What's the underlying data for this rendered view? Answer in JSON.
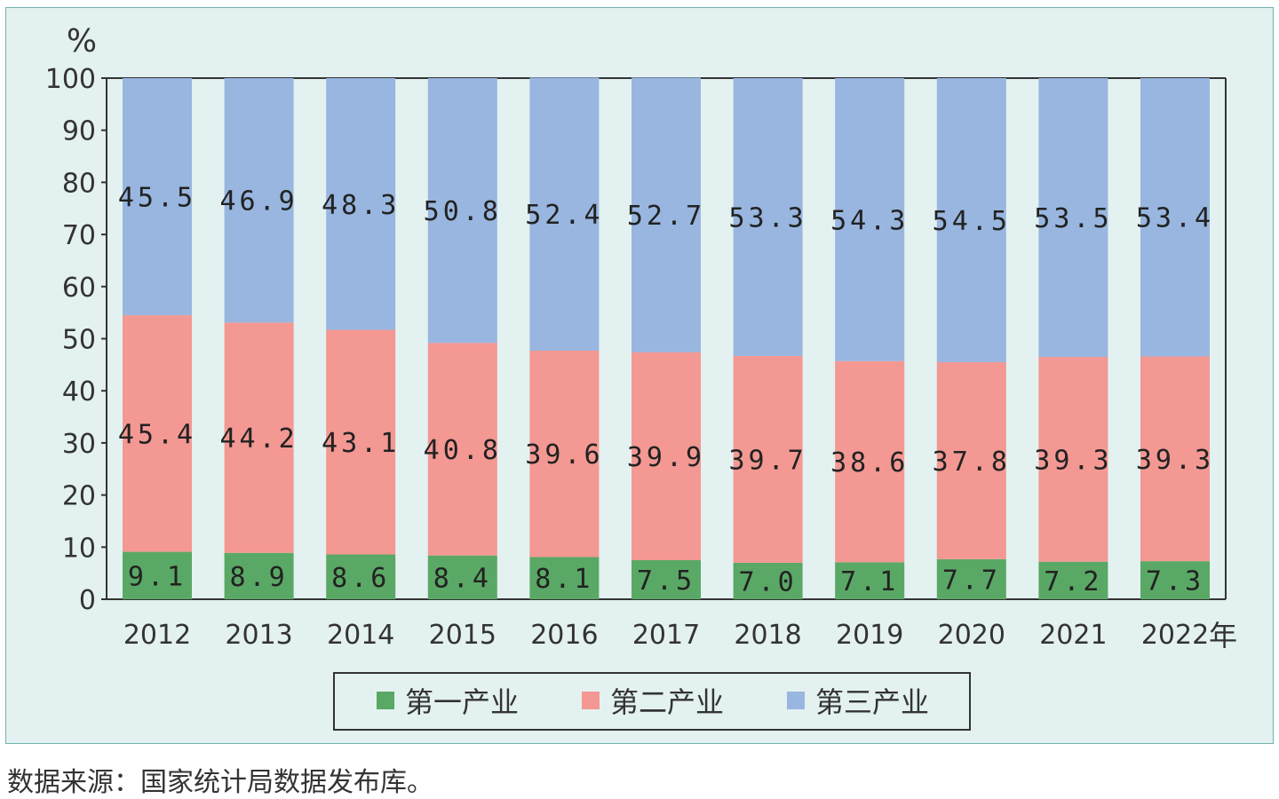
{
  "chart_data": {
    "type": "bar",
    "stacked": true,
    "unit_label": "%",
    "x_unit_suffix": "年",
    "ylim": [
      0,
      100
    ],
    "yticks": [
      0,
      10,
      20,
      30,
      40,
      50,
      60,
      70,
      80,
      90,
      100
    ],
    "categories": [
      "2012",
      "2013",
      "2014",
      "2015",
      "2016",
      "2017",
      "2018",
      "2019",
      "2020",
      "2021",
      "2022"
    ],
    "series": [
      {
        "name": "第一产业",
        "color": "#5aa865",
        "values": [
          9.1,
          8.9,
          8.6,
          8.4,
          8.1,
          7.5,
          7.0,
          7.1,
          7.7,
          7.2,
          7.3
        ]
      },
      {
        "name": "第二产业",
        "color": "#f39893",
        "values": [
          45.4,
          44.2,
          43.1,
          40.8,
          39.6,
          39.9,
          39.7,
          38.6,
          37.8,
          39.3,
          39.3
        ]
      },
      {
        "name": "第三产业",
        "color": "#98b6df",
        "values": [
          45.5,
          46.9,
          48.3,
          50.8,
          52.4,
          52.7,
          53.3,
          54.3,
          54.5,
          53.5,
          53.4
        ]
      }
    ],
    "legend": "bottom-center",
    "grid": false
  },
  "source_note": "数据来源：国家统计局数据发布库。"
}
